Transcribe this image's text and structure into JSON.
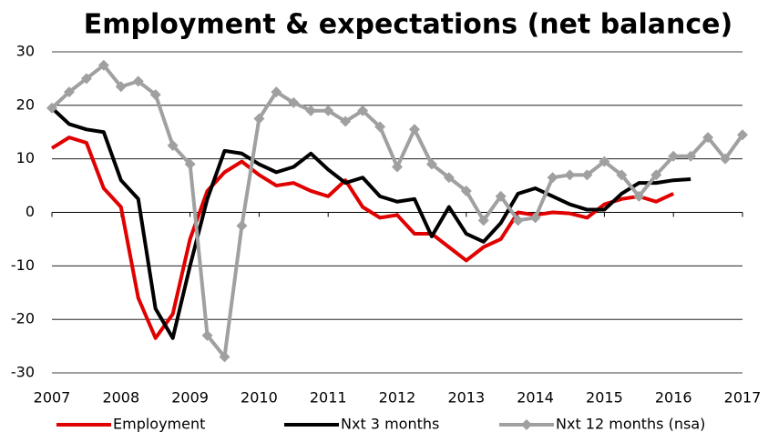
{
  "chart_data": {
    "type": "line",
    "title": "Employment & expectations (net balance)",
    "x": [
      2007,
      2007.25,
      2007.5,
      2007.75,
      2008,
      2008.25,
      2008.5,
      2008.75,
      2009,
      2009.25,
      2009.5,
      2009.75,
      2010,
      2010.25,
      2010.5,
      2010.75,
      2011,
      2011.25,
      2011.5,
      2011.75,
      2012,
      2012.25,
      2012.5,
      2012.75,
      2013,
      2013.25,
      2013.5,
      2013.75,
      2014,
      2014.25,
      2014.5,
      2014.75,
      2015,
      2015.25,
      2015.5,
      2015.75,
      2016,
      2016.25,
      2016.5,
      2016.75,
      2017
    ],
    "series": [
      {
        "name": "Employment",
        "color": "#e00000",
        "values": [
          12,
          14,
          13,
          4.5,
          1,
          -16,
          -23.5,
          -19,
          -5,
          4,
          7.5,
          9.5,
          7,
          5,
          5.5,
          4,
          3,
          6,
          1,
          -1,
          -0.5,
          -4,
          -4,
          -6.5,
          -9,
          -6.5,
          -5,
          0,
          -0.5,
          0,
          -0.2,
          -1,
          1.5,
          2.5,
          3,
          2,
          3.5,
          null,
          null,
          null,
          null
        ]
      },
      {
        "name": "Nxt 3 months",
        "color": "#000000",
        "values": [
          19.5,
          16.5,
          15.5,
          15,
          6,
          2.5,
          -18,
          -23.5,
          -10,
          2.5,
          11.5,
          11,
          9,
          7.5,
          8.5,
          11,
          8,
          5.5,
          6.5,
          3,
          2,
          2.5,
          -4.5,
          1,
          -4,
          -5.5,
          -2,
          3.5,
          4.5,
          3,
          1.5,
          0.5,
          0.5,
          3.5,
          5.5,
          5.5,
          6,
          6.2,
          null,
          null,
          null
        ]
      },
      {
        "name": "Nxt 12 months (nsa)",
        "color": "#a0a0a0",
        "markers": true,
        "values": [
          19.5,
          22.5,
          25,
          27.5,
          23.5,
          24.5,
          22,
          12.5,
          9,
          -23,
          -27,
          -2.5,
          17.5,
          22.5,
          20.5,
          19,
          19,
          17,
          19,
          16,
          8.5,
          15.5,
          9,
          6.5,
          4,
          -1.5,
          3,
          -1.5,
          -1,
          6.5,
          7,
          7,
          9.5,
          7,
          3,
          7,
          10.5,
          10.5,
          14,
          10,
          14.5
        ]
      }
    ],
    "xlim": [
      2007,
      2017
    ],
    "xticks": [
      2007,
      2008,
      2009,
      2010,
      2011,
      2012,
      2013,
      2014,
      2015,
      2016,
      2017
    ],
    "ylim": [
      -30,
      30
    ],
    "yticks": [
      -30,
      -20,
      -10,
      0,
      10,
      20,
      30
    ],
    "grid": true
  }
}
